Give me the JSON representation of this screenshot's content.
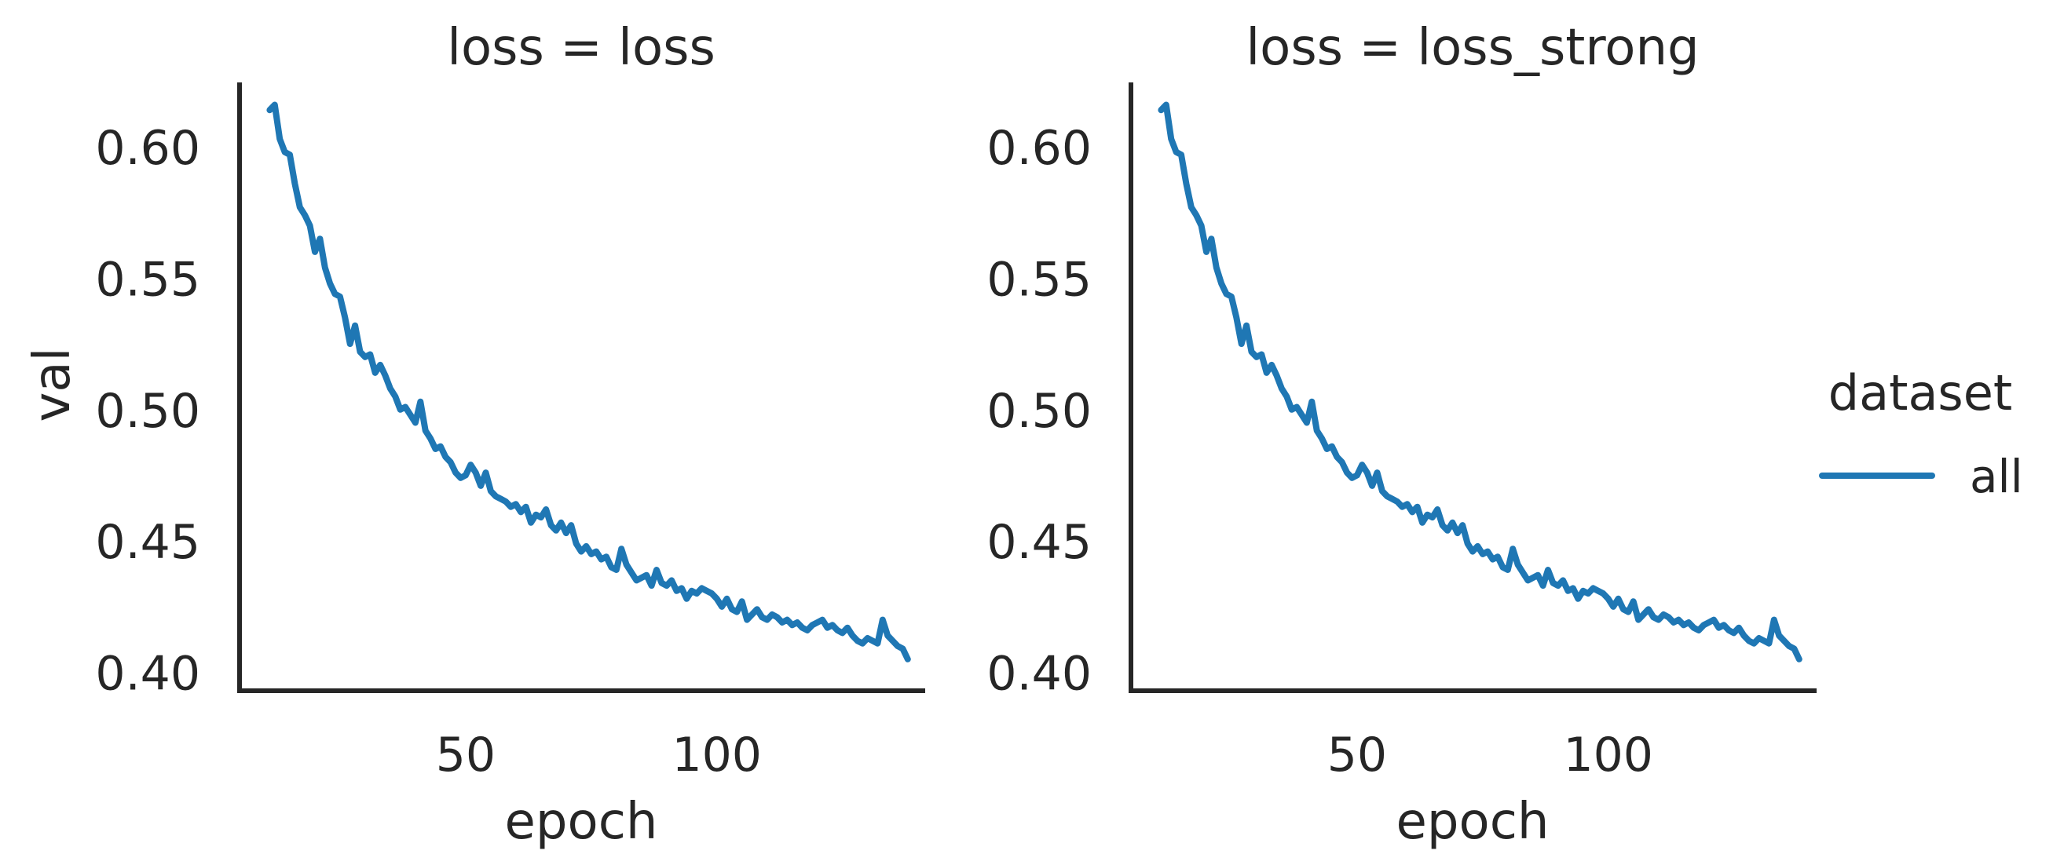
{
  "chart_data": [
    {
      "type": "line",
      "title": "loss = loss",
      "xlabel": "epoch",
      "ylabel": "val",
      "xlim": [
        5,
        141
      ],
      "ylim": [
        0.393,
        0.626
      ],
      "xticks": [
        50,
        100
      ],
      "xtick_labels": [
        "50",
        "100"
      ],
      "yticks": [
        0.4,
        0.45,
        0.5,
        0.55,
        0.6
      ],
      "ytick_labels": [
        "0.40",
        "0.45",
        "0.50",
        "0.55",
        "0.60"
      ],
      "grid": false,
      "series": [
        {
          "name": "all",
          "color": "#1f77b4",
          "x": [
            11,
            12,
            13,
            14,
            15,
            16,
            17,
            18,
            19,
            20,
            21,
            22,
            23,
            24,
            25,
            26,
            27,
            28,
            29,
            30,
            31,
            32,
            33,
            34,
            35,
            36,
            37,
            38,
            39,
            40,
            41,
            42,
            43,
            44,
            45,
            46,
            47,
            48,
            49,
            50,
            51,
            52,
            53,
            54,
            55,
            56,
            57,
            58,
            59,
            60,
            61,
            62,
            63,
            64,
            65,
            66,
            67,
            68,
            69,
            70,
            71,
            72,
            73,
            74,
            75,
            76,
            77,
            78,
            79,
            80,
            81,
            82,
            83,
            84,
            85,
            86,
            87,
            88,
            89,
            90,
            91,
            92,
            93,
            94,
            95,
            96,
            97,
            98,
            99,
            100,
            101,
            102,
            103,
            104,
            105,
            106,
            107,
            108,
            109,
            110,
            111,
            112,
            113,
            114,
            115,
            116,
            117,
            118,
            119,
            120,
            121,
            122,
            123,
            124,
            125,
            126,
            127,
            128,
            129,
            130,
            131,
            132,
            133,
            134,
            135,
            136,
            137,
            138
          ],
          "y": [
            0.614,
            0.616,
            0.603,
            0.598,
            0.597,
            0.586,
            0.577,
            0.574,
            0.57,
            0.56,
            0.565,
            0.554,
            0.548,
            0.544,
            0.543,
            0.535,
            0.525,
            0.532,
            0.522,
            0.52,
            0.521,
            0.514,
            0.517,
            0.513,
            0.508,
            0.505,
            0.5,
            0.501,
            0.498,
            0.495,
            0.503,
            0.492,
            0.489,
            0.485,
            0.486,
            0.482,
            0.48,
            0.476,
            0.474,
            0.475,
            0.479,
            0.476,
            0.471,
            0.476,
            0.469,
            0.467,
            0.466,
            0.465,
            0.463,
            0.464,
            0.461,
            0.463,
            0.457,
            0.46,
            0.459,
            0.462,
            0.456,
            0.454,
            0.457,
            0.453,
            0.456,
            0.449,
            0.446,
            0.448,
            0.445,
            0.446,
            0.443,
            0.444,
            0.44,
            0.439,
            0.447,
            0.441,
            0.438,
            0.435,
            0.436,
            0.437,
            0.433,
            0.439,
            0.434,
            0.433,
            0.435,
            0.431,
            0.432,
            0.428,
            0.431,
            0.43,
            0.432,
            0.431,
            0.43,
            0.428,
            0.425,
            0.428,
            0.424,
            0.423,
            0.427,
            0.42,
            0.422,
            0.424,
            0.421,
            0.42,
            0.422,
            0.421,
            0.419,
            0.42,
            0.418,
            0.419,
            0.417,
            0.416,
            0.418,
            0.419,
            0.42,
            0.417,
            0.418,
            0.416,
            0.415,
            0.417,
            0.414,
            0.412,
            0.411,
            0.413,
            0.412,
            0.411,
            0.42,
            0.414,
            0.412,
            0.41,
            0.409,
            0.405
          ]
        }
      ]
    },
    {
      "type": "line",
      "title": "loss = loss_strong",
      "xlabel": "epoch",
      "ylabel": "",
      "xlim": [
        5,
        141
      ],
      "ylim": [
        0.393,
        0.626
      ],
      "xticks": [
        50,
        100
      ],
      "xtick_labels": [
        "50",
        "100"
      ],
      "yticks": [
        0.4,
        0.45,
        0.5,
        0.55,
        0.6
      ],
      "ytick_labels": [
        "0.40",
        "0.45",
        "0.50",
        "0.55",
        "0.60"
      ],
      "grid": false,
      "series": [
        {
          "name": "all",
          "color": "#1f77b4",
          "x": [
            11,
            12,
            13,
            14,
            15,
            16,
            17,
            18,
            19,
            20,
            21,
            22,
            23,
            24,
            25,
            26,
            27,
            28,
            29,
            30,
            31,
            32,
            33,
            34,
            35,
            36,
            37,
            38,
            39,
            40,
            41,
            42,
            43,
            44,
            45,
            46,
            47,
            48,
            49,
            50,
            51,
            52,
            53,
            54,
            55,
            56,
            57,
            58,
            59,
            60,
            61,
            62,
            63,
            64,
            65,
            66,
            67,
            68,
            69,
            70,
            71,
            72,
            73,
            74,
            75,
            76,
            77,
            78,
            79,
            80,
            81,
            82,
            83,
            84,
            85,
            86,
            87,
            88,
            89,
            90,
            91,
            92,
            93,
            94,
            95,
            96,
            97,
            98,
            99,
            100,
            101,
            102,
            103,
            104,
            105,
            106,
            107,
            108,
            109,
            110,
            111,
            112,
            113,
            114,
            115,
            116,
            117,
            118,
            119,
            120,
            121,
            122,
            123,
            124,
            125,
            126,
            127,
            128,
            129,
            130,
            131,
            132,
            133,
            134,
            135,
            136,
            137,
            138
          ],
          "y": [
            0.614,
            0.616,
            0.603,
            0.598,
            0.597,
            0.586,
            0.577,
            0.574,
            0.57,
            0.56,
            0.565,
            0.554,
            0.548,
            0.544,
            0.543,
            0.535,
            0.525,
            0.532,
            0.522,
            0.52,
            0.521,
            0.514,
            0.517,
            0.513,
            0.508,
            0.505,
            0.5,
            0.501,
            0.498,
            0.495,
            0.503,
            0.492,
            0.489,
            0.485,
            0.486,
            0.482,
            0.48,
            0.476,
            0.474,
            0.475,
            0.479,
            0.476,
            0.471,
            0.476,
            0.469,
            0.467,
            0.466,
            0.465,
            0.463,
            0.464,
            0.461,
            0.463,
            0.457,
            0.46,
            0.459,
            0.462,
            0.456,
            0.454,
            0.457,
            0.453,
            0.456,
            0.449,
            0.446,
            0.448,
            0.445,
            0.446,
            0.443,
            0.444,
            0.44,
            0.439,
            0.447,
            0.441,
            0.438,
            0.435,
            0.436,
            0.437,
            0.433,
            0.439,
            0.434,
            0.433,
            0.435,
            0.431,
            0.432,
            0.428,
            0.431,
            0.43,
            0.432,
            0.431,
            0.43,
            0.428,
            0.425,
            0.428,
            0.424,
            0.423,
            0.427,
            0.42,
            0.422,
            0.424,
            0.421,
            0.42,
            0.422,
            0.421,
            0.419,
            0.42,
            0.418,
            0.419,
            0.417,
            0.416,
            0.418,
            0.419,
            0.42,
            0.417,
            0.418,
            0.416,
            0.415,
            0.417,
            0.414,
            0.412,
            0.411,
            0.413,
            0.412,
            0.411,
            0.42,
            0.414,
            0.412,
            0.41,
            0.409,
            0.405
          ]
        }
      ]
    }
  ],
  "legend": {
    "title": "dataset",
    "placement": "right",
    "entries": [
      {
        "label": "all",
        "color": "#1f77b4"
      }
    ]
  }
}
